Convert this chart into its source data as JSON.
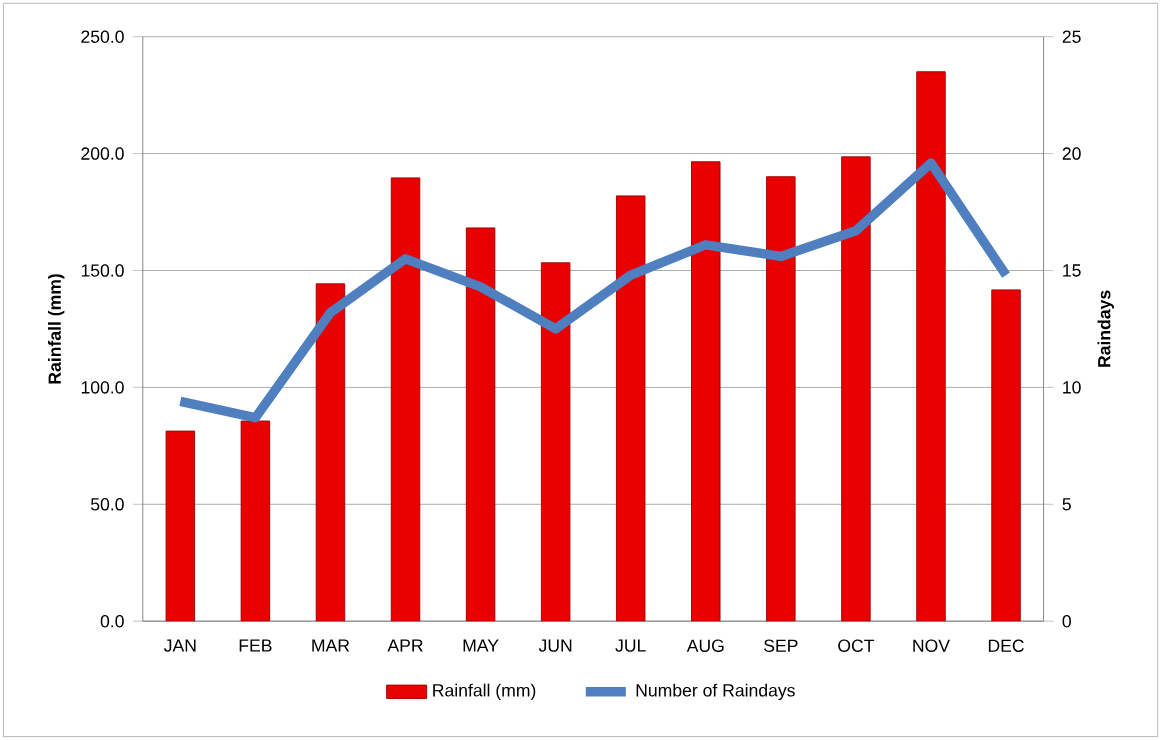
{
  "chart_data": {
    "type": "bar",
    "categories": [
      "JAN",
      "FEB",
      "MAR",
      "APR",
      "MAY",
      "JUN",
      "JUL",
      "AUG",
      "SEP",
      "OCT",
      "NOV",
      "DEC"
    ],
    "series": [
      {
        "name": "Rainfall (mm)",
        "color": "#e80000",
        "values": [
          81.3,
          85.6,
          144.3,
          189.6,
          168.2,
          153.3,
          181.9,
          196.5,
          190.1,
          198.6,
          235.0,
          141.7
        ]
      },
      {
        "name": "Number of Raindays",
        "type": "line",
        "axis": "y2",
        "color": "#4f7fbf",
        "values": [
          9.4,
          8.7,
          13.2,
          15.5,
          14.3,
          12.5,
          14.8,
          16.1,
          15.6,
          16.7,
          19.6,
          14.8
        ]
      }
    ],
    "ylabel": "Rainfall (mm)",
    "y2label": "Raindays",
    "ylim": [
      0,
      250
    ],
    "yticks": [
      {
        "value": 0,
        "label": "0.0"
      },
      {
        "value": 50,
        "label": "50.0"
      },
      {
        "value": 100,
        "label": "100.0"
      },
      {
        "value": 150,
        "label": "150.0"
      },
      {
        "value": 200,
        "label": "200.0"
      },
      {
        "value": 250,
        "label": "250.0"
      }
    ],
    "y2lim": [
      0,
      25
    ],
    "y2ticks": [
      0,
      5,
      10,
      15,
      20,
      25
    ],
    "grid": "y",
    "legend": "bottom"
  }
}
